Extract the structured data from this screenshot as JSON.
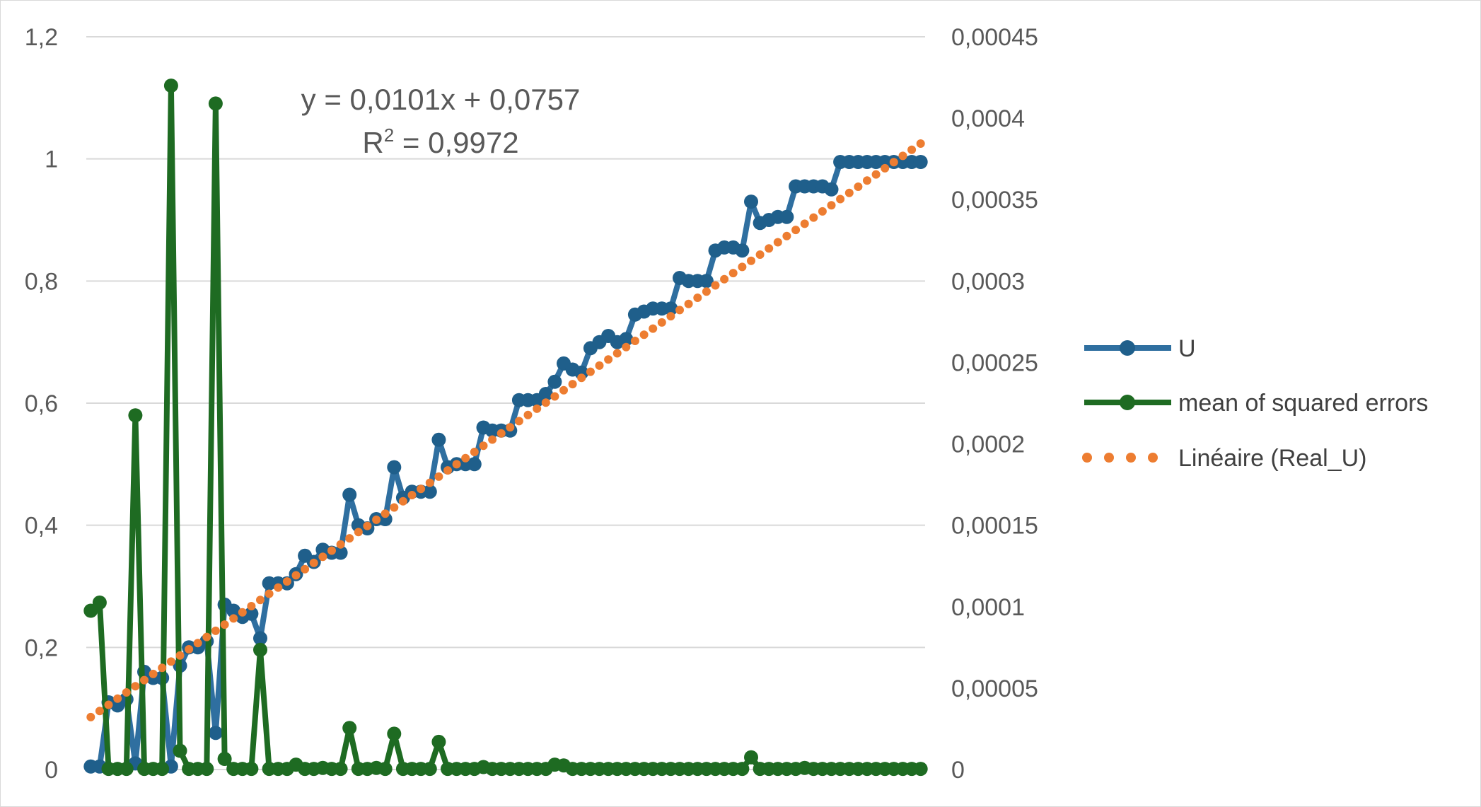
{
  "chart_data": {
    "type": "line",
    "left_axis": {
      "ylim": [
        0,
        1.2
      ],
      "ticks": [
        {
          "value": 0,
          "label": "0"
        },
        {
          "value": 0.2,
          "label": "0,2"
        },
        {
          "value": 0.4,
          "label": "0,4"
        },
        {
          "value": 0.6,
          "label": "0,6"
        },
        {
          "value": 0.8,
          "label": "0,8"
        },
        {
          "value": 1.0,
          "label": "1"
        },
        {
          "value": 1.2,
          "label": "1,2"
        }
      ]
    },
    "right_axis": {
      "ylim": [
        0,
        0.00045
      ],
      "ticks": [
        {
          "value": 0,
          "label": "0"
        },
        {
          "value": 5e-05,
          "label": "0,00005"
        },
        {
          "value": 0.0001,
          "label": "0,0001"
        },
        {
          "value": 0.00015,
          "label": "0,00015"
        },
        {
          "value": 0.0002,
          "label": "0,0002"
        },
        {
          "value": 0.00025,
          "label": "0,00025"
        },
        {
          "value": 0.0003,
          "label": "0,0003"
        },
        {
          "value": 0.00035,
          "label": "0,00035"
        },
        {
          "value": 0.0004,
          "label": "0,0004"
        },
        {
          "value": 0.00045,
          "label": "0,00045"
        }
      ]
    },
    "grid": true,
    "legend_position": "right",
    "x_count": 94,
    "series": [
      {
        "name": "U",
        "axis": "left",
        "color": "#2f6fa0",
        "marker_color": "#1f5f8b",
        "values": [
          0.005,
          0.005,
          0.11,
          0.105,
          0.115,
          0.01,
          0.16,
          0.15,
          0.15,
          0.005,
          0.17,
          0.2,
          0.2,
          0.21,
          0.06,
          0.27,
          0.26,
          0.25,
          0.255,
          0.215,
          0.305,
          0.305,
          0.305,
          0.32,
          0.35,
          0.34,
          0.36,
          0.355,
          0.355,
          0.45,
          0.4,
          0.395,
          0.41,
          0.41,
          0.495,
          0.445,
          0.455,
          0.455,
          0.455,
          0.54,
          0.495,
          0.5,
          0.5,
          0.5,
          0.56,
          0.555,
          0.555,
          0.555,
          0.605,
          0.605,
          0.605,
          0.615,
          0.635,
          0.665,
          0.655,
          0.65,
          0.69,
          0.7,
          0.71,
          0.7,
          0.705,
          0.745,
          0.75,
          0.755,
          0.755,
          0.755,
          0.805,
          0.8,
          0.8,
          0.8,
          0.85,
          0.855,
          0.855,
          0.85,
          0.93,
          0.895,
          0.9,
          0.905,
          0.905,
          0.955,
          0.955,
          0.955,
          0.955,
          0.95,
          0.995,
          0.995,
          0.995,
          0.995,
          0.995,
          0.995,
          0.995,
          0.995,
          0.995,
          0.995
        ]
      },
      {
        "name": "mean of squared errors",
        "axis": "right",
        "color": "#1e6b22",
        "marker_color": "#1e6b22",
        "values": [
          9.75e-05,
          0.0001025,
          4e-07,
          4e-07,
          4e-07,
          0.0002175,
          4e-07,
          4e-07,
          4e-07,
          0.00042,
          1.15e-05,
          4e-07,
          4e-07,
          4e-07,
          0.000409,
          6.5e-06,
          4e-07,
          4e-07,
          4e-07,
          7.35e-05,
          4e-07,
          4e-07,
          4e-07,
          3e-06,
          4e-07,
          4e-07,
          1e-06,
          4e-07,
          4e-07,
          2.55e-05,
          4e-07,
          4e-07,
          1e-06,
          4e-07,
          2.2e-05,
          4e-07,
          4e-07,
          4e-07,
          4e-07,
          1.7e-05,
          4e-07,
          4e-07,
          4e-07,
          4e-07,
          1.5e-06,
          4e-07,
          4e-07,
          4e-07,
          4e-07,
          4e-07,
          4e-07,
          4e-07,
          3e-06,
          2.5e-06,
          4e-07,
          4e-07,
          4e-07,
          4e-07,
          4e-07,
          4e-07,
          4e-07,
          4e-07,
          4e-07,
          4e-07,
          4e-07,
          4e-07,
          4e-07,
          4e-07,
          4e-07,
          4e-07,
          4e-07,
          4e-07,
          4e-07,
          4e-07,
          7.5e-06,
          4e-07,
          4e-07,
          4e-07,
          4e-07,
          4e-07,
          1e-06,
          4e-07,
          4e-07,
          4e-07,
          4e-07,
          4e-07,
          4e-07,
          4e-07,
          4e-07,
          4e-07,
          4e-07,
          4e-07,
          4e-07,
          4e-07
        ]
      }
    ],
    "trendline": {
      "name": "Linéaire (Real_U)",
      "color": "#ed7d31",
      "style": "dotted",
      "slope": 0.0101,
      "intercept": 0.0757,
      "equation_text": "y = 0,0101x + 0,0757",
      "r2_prefix": "R",
      "r2_sup": "2",
      "r2_value": " = 0,9972"
    }
  }
}
